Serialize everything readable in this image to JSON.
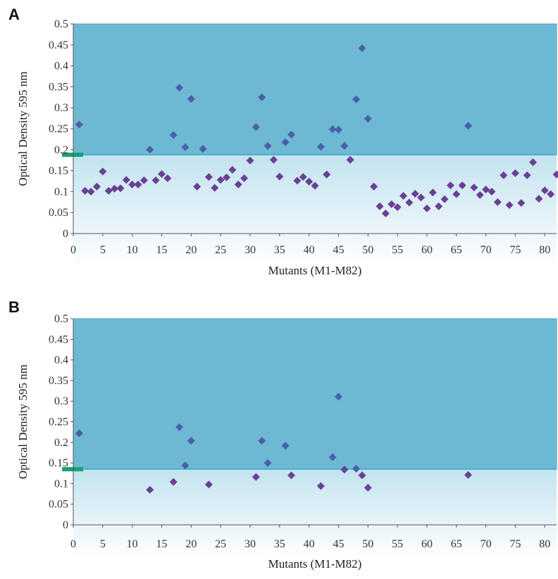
{
  "colors": {
    "shade_top": "#6db8d2",
    "shade_top_stroke": "#4aa6c6",
    "threshold_line": "#3aa9cf",
    "marker_above": "#4a5fa8",
    "marker_below": "#6a3f95",
    "threshold_tick": "#18a176",
    "axis": "#555555"
  },
  "chart_data": [
    {
      "panel": "A",
      "type": "scatter",
      "xlabel": "Mutants (M1-M82)",
      "ylabel": "Optical Density 595 nm",
      "xlim": [
        0,
        82
      ],
      "ylim": [
        0,
        0.5
      ],
      "xticks": [
        0,
        5,
        10,
        15,
        20,
        25,
        30,
        35,
        40,
        45,
        50,
        55,
        60,
        65,
        70,
        75,
        80
      ],
      "yticks": [
        0,
        0.05,
        0.1,
        0.15,
        0.2,
        0.25,
        0.3,
        0.35,
        0.4,
        0.45,
        0.5
      ],
      "ytick_labels": [
        "0",
        "0.05",
        "0.1",
        "0.15",
        "0.2",
        "0.25",
        "0.3",
        "0.35",
        "0.4",
        "0.45",
        "0.5"
      ],
      "threshold": 0.188,
      "grid": false,
      "points": [
        [
          1,
          0.26
        ],
        [
          2,
          0.102
        ],
        [
          3,
          0.1
        ],
        [
          4,
          0.112
        ],
        [
          5,
          0.148
        ],
        [
          6,
          0.102
        ],
        [
          7,
          0.107
        ],
        [
          8,
          0.108
        ],
        [
          9,
          0.128
        ],
        [
          10,
          0.117
        ],
        [
          11,
          0.117
        ],
        [
          12,
          0.127
        ],
        [
          13,
          0.2
        ],
        [
          14,
          0.127
        ],
        [
          15,
          0.142
        ],
        [
          16,
          0.132
        ],
        [
          17,
          0.235
        ],
        [
          18,
          0.348
        ],
        [
          19,
          0.206
        ],
        [
          20,
          0.321
        ],
        [
          21,
          0.112
        ],
        [
          22,
          0.202
        ],
        [
          23,
          0.135
        ],
        [
          24,
          0.109
        ],
        [
          25,
          0.128
        ],
        [
          26,
          0.134
        ],
        [
          27,
          0.152
        ],
        [
          28,
          0.117
        ],
        [
          29,
          0.132
        ],
        [
          30,
          0.174
        ],
        [
          31,
          0.254
        ],
        [
          32,
          0.325
        ],
        [
          33,
          0.209
        ],
        [
          34,
          0.176
        ],
        [
          35,
          0.136
        ],
        [
          36,
          0.218
        ],
        [
          37,
          0.236
        ],
        [
          38,
          0.126
        ],
        [
          39,
          0.135
        ],
        [
          40,
          0.124
        ],
        [
          41,
          0.114
        ],
        [
          42,
          0.207
        ],
        [
          43,
          0.141
        ],
        [
          44,
          0.249
        ],
        [
          45,
          0.248
        ],
        [
          46,
          0.209
        ],
        [
          47,
          0.176
        ],
        [
          48,
          0.32
        ],
        [
          49,
          0.442
        ],
        [
          50,
          0.274
        ],
        [
          51,
          0.112
        ],
        [
          52,
          0.065
        ],
        [
          53,
          0.048
        ],
        [
          54,
          0.07
        ],
        [
          55,
          0.063
        ],
        [
          56,
          0.09
        ],
        [
          57,
          0.074
        ],
        [
          58,
          0.095
        ],
        [
          59,
          0.086
        ],
        [
          60,
          0.06
        ],
        [
          61,
          0.098
        ],
        [
          62,
          0.065
        ],
        [
          63,
          0.082
        ],
        [
          64,
          0.115
        ],
        [
          65,
          0.094
        ],
        [
          66,
          0.115
        ],
        [
          67,
          0.257
        ],
        [
          68,
          0.11
        ],
        [
          69,
          0.092
        ],
        [
          70,
          0.105
        ],
        [
          71,
          0.1
        ],
        [
          72,
          0.075
        ],
        [
          73,
          0.139
        ],
        [
          74,
          0.068
        ],
        [
          75,
          0.144
        ],
        [
          76,
          0.073
        ],
        [
          77,
          0.139
        ],
        [
          78,
          0.17
        ],
        [
          79,
          0.083
        ],
        [
          80,
          0.103
        ],
        [
          81,
          0.094
        ],
        [
          82,
          0.141
        ]
      ]
    },
    {
      "panel": "B",
      "type": "scatter",
      "xlabel": "Mutants (M1-M82)",
      "ylabel": "Optical Density 595 nm",
      "xlim": [
        0,
        82
      ],
      "ylim": [
        0,
        0.5
      ],
      "xticks": [
        0,
        5,
        10,
        15,
        20,
        25,
        30,
        35,
        40,
        45,
        50,
        55,
        60,
        65,
        70,
        75,
        80
      ],
      "yticks": [
        0,
        0.05,
        0.1,
        0.15,
        0.2,
        0.25,
        0.3,
        0.35,
        0.4,
        0.45,
        0.5
      ],
      "ytick_labels": [
        "0",
        "0.05",
        "0.1",
        "0.15",
        "0.2",
        "0.25",
        "0.3",
        "0.35",
        "0.4",
        "0.45",
        "0.5"
      ],
      "threshold": 0.135,
      "grid": false,
      "points": [
        [
          1,
          0.222
        ],
        [
          13,
          0.085
        ],
        [
          17,
          0.104
        ],
        [
          18,
          0.237
        ],
        [
          19,
          0.144
        ],
        [
          20,
          0.204
        ],
        [
          23,
          0.098
        ],
        [
          31,
          0.116
        ],
        [
          32,
          0.204
        ],
        [
          33,
          0.15
        ],
        [
          36,
          0.192
        ],
        [
          37,
          0.12
        ],
        [
          42,
          0.094
        ],
        [
          44,
          0.164
        ],
        [
          45,
          0.311
        ],
        [
          46,
          0.134
        ],
        [
          48,
          0.136
        ],
        [
          49,
          0.12
        ],
        [
          50,
          0.09
        ],
        [
          67,
          0.121
        ]
      ]
    }
  ]
}
